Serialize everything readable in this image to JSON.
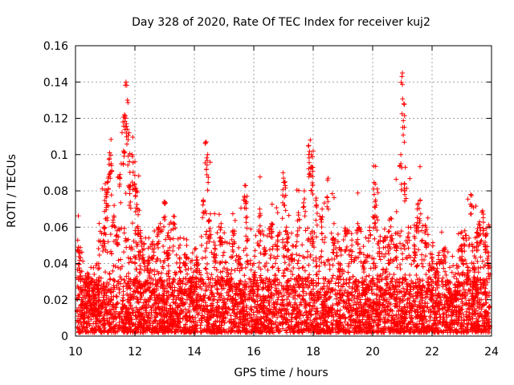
{
  "chart_data": {
    "type": "scatter",
    "title": "Day 328 of 2020, Rate Of TEC Index for receiver kuj2",
    "xlabel": "GPS time / hours",
    "ylabel": "ROTI / TECUs",
    "xlim": [
      10,
      24
    ],
    "ylim": [
      0,
      0.16
    ],
    "x_ticks": [
      10,
      12,
      14,
      16,
      18,
      20,
      22,
      24
    ],
    "x_tick_labels": [
      "10",
      "12",
      "14",
      "16",
      "18",
      "20",
      "22",
      "24"
    ],
    "y_ticks": [
      0,
      0.02,
      0.04,
      0.06,
      0.08,
      0.1,
      0.12,
      0.14,
      0.16
    ],
    "y_tick_labels": [
      "0",
      "0.02",
      "0.04",
      "0.06",
      "0.08",
      "0.1",
      "0.12",
      "0.14",
      "0.16"
    ],
    "grid": true,
    "marker": "+",
    "series": [
      {
        "name": "ROTI",
        "color": "#ff0000",
        "x": [
          10.1,
          10.15,
          10.2,
          10.25,
          10.35,
          10.45,
          10.55,
          10.65,
          10.8,
          10.95,
          11.0,
          11.05,
          11.1,
          11.15,
          11.2,
          11.3,
          11.4,
          11.5,
          11.6,
          11.65,
          11.7,
          11.75,
          11.8,
          11.85,
          11.9,
          12.0,
          12.05,
          12.1,
          12.2,
          12.3,
          12.45,
          12.6,
          12.8,
          13.0,
          13.1,
          13.3,
          13.5,
          13.7,
          13.9,
          14.1,
          14.3,
          14.4,
          14.45,
          14.5,
          14.7,
          14.9,
          15.1,
          15.3,
          15.5,
          15.7,
          15.75,
          16.0,
          16.2,
          16.4,
          16.6,
          16.8,
          17.0,
          17.05,
          17.1,
          17.3,
          17.5,
          17.7,
          17.85,
          17.9,
          17.95,
          18.0,
          18.1,
          18.3,
          18.5,
          18.7,
          18.9,
          19.1,
          19.3,
          19.5,
          19.7,
          19.9,
          20.05,
          20.1,
          20.2,
          20.4,
          20.6,
          20.8,
          20.95,
          21.0,
          21.05,
          21.1,
          21.2,
          21.4,
          21.5,
          21.6,
          21.8,
          22.0,
          22.2,
          22.4,
          22.6,
          22.8,
          23.0,
          23.1,
          23.2,
          23.3,
          23.4,
          23.5,
          23.6,
          23.7,
          23.8,
          23.9
        ],
        "y": [
          0.049,
          0.036,
          0.02,
          0.012,
          0.018,
          0.027,
          0.015,
          0.021,
          0.03,
          0.06,
          0.084,
          0.079,
          0.087,
          0.101,
          0.095,
          0.072,
          0.058,
          0.089,
          0.118,
          0.122,
          0.14,
          0.13,
          0.112,
          0.083,
          0.1,
          0.096,
          0.08,
          0.07,
          0.055,
          0.048,
          0.04,
          0.052,
          0.06,
          0.074,
          0.046,
          0.066,
          0.038,
          0.045,
          0.03,
          0.042,
          0.075,
          0.107,
          0.1,
          0.064,
          0.05,
          0.062,
          0.035,
          0.058,
          0.044,
          0.083,
          0.074,
          0.04,
          0.07,
          0.047,
          0.062,
          0.055,
          0.087,
          0.085,
          0.06,
          0.045,
          0.068,
          0.08,
          0.105,
          0.108,
          0.093,
          0.102,
          0.076,
          0.07,
          0.087,
          0.062,
          0.04,
          0.058,
          0.05,
          0.062,
          0.045,
          0.06,
          0.078,
          0.075,
          0.052,
          0.059,
          0.065,
          0.05,
          0.1,
          0.145,
          0.128,
          0.093,
          0.06,
          0.055,
          0.07,
          0.075,
          0.06,
          0.045,
          0.035,
          0.048,
          0.03,
          0.024,
          0.05,
          0.058,
          0.038,
          0.078,
          0.04,
          0.057,
          0.063,
          0.069,
          0.056,
          0.046
        ]
      }
    ],
    "dense_band": {
      "description_values_low": [
        0.002,
        0.005,
        0.01
      ],
      "description_values_high": [
        0.02,
        0.03,
        0.045
      ]
    }
  }
}
